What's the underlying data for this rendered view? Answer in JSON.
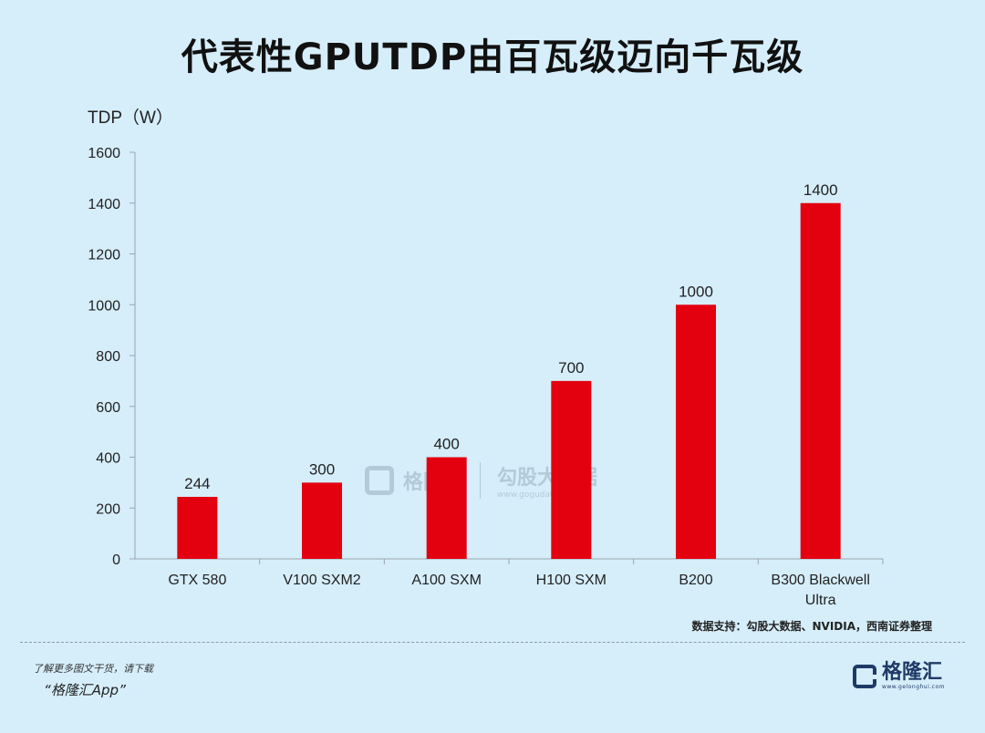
{
  "title": "代表性GPUTDP由百瓦级迈向千瓦级",
  "source": "数据支持：勾股大数据、NVIDIA，西南证券整理",
  "footer": {
    "promo_line1": "了解更多图文干货，请下载",
    "promo_line2": "“格隆汇App”",
    "brand_name": "格隆汇",
    "brand_url": "www.gelonghui.com",
    "brand_color": "#1f3a66"
  },
  "watermark": {
    "name": "格隆汇",
    "name2": "勾股大数据",
    "url": "www.gogudata.com"
  },
  "colors": {
    "background": "#d6eefa",
    "bar": "#e3000f"
  },
  "chart_data": {
    "type": "bar",
    "ylabel": "TDP（W）",
    "ylim": [
      0,
      1600
    ],
    "yticks": [
      0,
      200,
      400,
      600,
      800,
      1000,
      1200,
      1400,
      1600
    ],
    "categories": [
      [
        "GTX 580"
      ],
      [
        "V100 SXM2"
      ],
      [
        "A100 SXM"
      ],
      [
        "H100 SXM"
      ],
      [
        "B200"
      ],
      [
        "B300 Blackwell",
        "Ultra"
      ]
    ],
    "values": [
      244,
      300,
      400,
      700,
      1000,
      1400
    ],
    "grid": false,
    "legend": "none"
  }
}
